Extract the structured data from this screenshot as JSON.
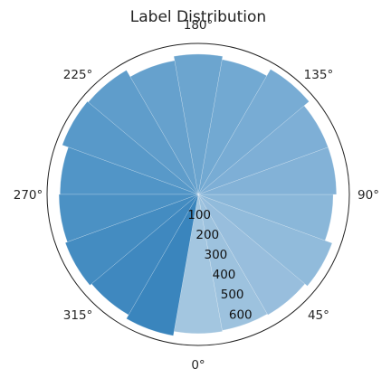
{
  "chart_data": {
    "type": "bar",
    "projection": "polar",
    "title": "Label Distribution",
    "theta_zero_location": "bottom",
    "theta_direction": "counterclockwise",
    "angle_labels": [
      "0°",
      "45°",
      "90°",
      "135°",
      "180°",
      "225°",
      "270°",
      "315°"
    ],
    "radial_ticks": [
      "100",
      "200",
      "300",
      "400",
      "500",
      "600"
    ],
    "radial_tick_values": [
      100,
      200,
      300,
      400,
      500,
      600
    ],
    "rlim": [
      0,
      700
    ],
    "grid": false,
    "colormap": "Blues",
    "bars": [
      {
        "theta": 0,
        "value": 645,
        "color": "#a3c6e0"
      },
      {
        "theta": 20,
        "value": 640,
        "color": "#9dc2de"
      },
      {
        "theta": 40,
        "value": 645,
        "color": "#98bedd"
      },
      {
        "theta": 60,
        "value": 660,
        "color": "#91bbdb"
      },
      {
        "theta": 80,
        "value": 625,
        "color": "#8ab7d9"
      },
      {
        "theta": 100,
        "value": 640,
        "color": "#83b2d7"
      },
      {
        "theta": 120,
        "value": 640,
        "color": "#7eafd6"
      },
      {
        "theta": 140,
        "value": 670,
        "color": "#78acd4"
      },
      {
        "theta": 160,
        "value": 635,
        "color": "#72a9d2"
      },
      {
        "theta": 180,
        "value": 650,
        "color": "#6ca5cf"
      },
      {
        "theta": 200,
        "value": 630,
        "color": "#66a1cd"
      },
      {
        "theta": 220,
        "value": 665,
        "color": "#5f9dcb"
      },
      {
        "theta": 240,
        "value": 670,
        "color": "#5899c9"
      },
      {
        "theta": 260,
        "value": 640,
        "color": "#5195c7"
      },
      {
        "theta": 280,
        "value": 645,
        "color": "#4b91c4"
      },
      {
        "theta": 300,
        "value": 655,
        "color": "#448cc1"
      },
      {
        "theta": 320,
        "value": 645,
        "color": "#3f88bf"
      },
      {
        "theta": 340,
        "value": 665,
        "color": "#3a85bd"
      }
    ]
  }
}
